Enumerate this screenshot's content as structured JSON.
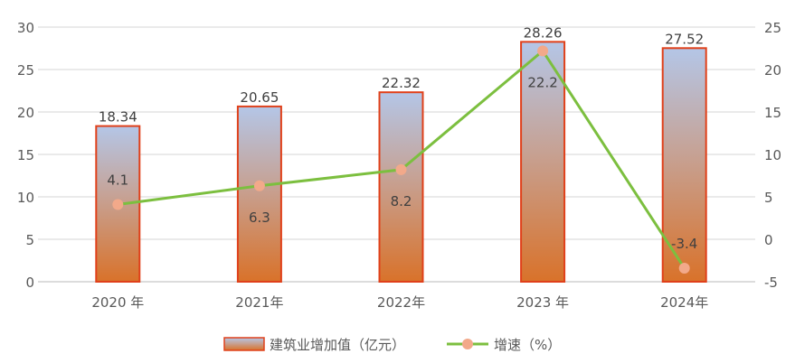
{
  "chart_data": {
    "type": "bar+line",
    "categories": [
      "2020 年",
      "2021年",
      "2022年",
      "2023 年",
      "2024年"
    ],
    "series": [
      {
        "name": "建筑业增加值（亿元）",
        "type": "bar",
        "axis": "left",
        "values": [
          18.34,
          20.65,
          22.32,
          28.26,
          27.52
        ],
        "labels": [
          "18.34",
          "20.65",
          "22.32",
          "28.26",
          "27.52"
        ]
      },
      {
        "name": "增速（%）",
        "type": "line",
        "axis": "right",
        "values": [
          4.1,
          6.3,
          8.2,
          22.2,
          -3.4
        ],
        "labels": [
          "4.1",
          "6.3",
          "8.2",
          "22.2",
          "-3.4"
        ]
      }
    ],
    "left_axis": {
      "range": [
        0,
        30
      ],
      "ticks": [
        "0",
        "5",
        "10",
        "15",
        "20",
        "25",
        "30"
      ]
    },
    "right_axis": {
      "range": [
        -5,
        25
      ],
      "ticks": [
        "-5",
        "0",
        "5",
        "10",
        "15",
        "20",
        "25"
      ]
    },
    "grid": true,
    "legend": "bottom",
    "colors": {
      "bar_top": "#b4c6e7",
      "bar_bottom": "#d9722a",
      "bar_border": "#e0401a",
      "line": "#7cbf3f",
      "marker": "#f2a98a",
      "grid": "#e3e3e3",
      "text": "#404040"
    }
  }
}
